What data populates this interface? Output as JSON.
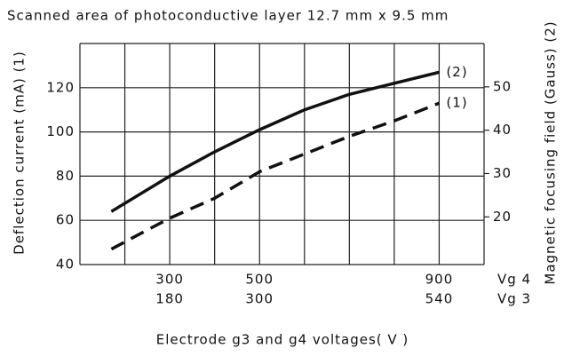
{
  "chart_data": {
    "type": "line",
    "title": "Scanned area of photoconductive layer 12.7 mm x 9.5 mm",
    "ylabel": "Deflection current (mA)  (1)",
    "y2label": "Magnetic focusing field (Gauss)  (2)",
    "xlabel": "Electrode g3 and g4 voltages( V )",
    "xaxis_name": "Vg 4",
    "x2axis_name": "Vg 3",
    "xlim": [
      100,
      1000
    ],
    "xticks": [
      300,
      500,
      900
    ],
    "xgrid": [
      100,
      200,
      300,
      400,
      500,
      600,
      700,
      800,
      900,
      1000
    ],
    "x2lim": [
      60,
      600
    ],
    "x2ticks": [
      180,
      300,
      540
    ],
    "ylim": [
      40,
      140
    ],
    "yticks": [
      40,
      60,
      80,
      100,
      120
    ],
    "ygrid": [
      40,
      60,
      80,
      100,
      120,
      140
    ],
    "y2lim": [
      9,
      60
    ],
    "y2ticks": [
      20,
      30,
      40,
      50
    ],
    "grid": true,
    "x": [
      170,
      300,
      400,
      500,
      600,
      700,
      800,
      900
    ],
    "series": [
      {
        "name": "(2)",
        "color": "#111111",
        "dash": false,
        "values": [
          64,
          80,
          91,
          101,
          110,
          117,
          122,
          127
        ]
      },
      {
        "name": "(1)",
        "color": "#111111",
        "dash": true,
        "values": [
          47,
          61,
          70,
          82,
          90,
          98,
          105,
          113
        ]
      }
    ]
  }
}
